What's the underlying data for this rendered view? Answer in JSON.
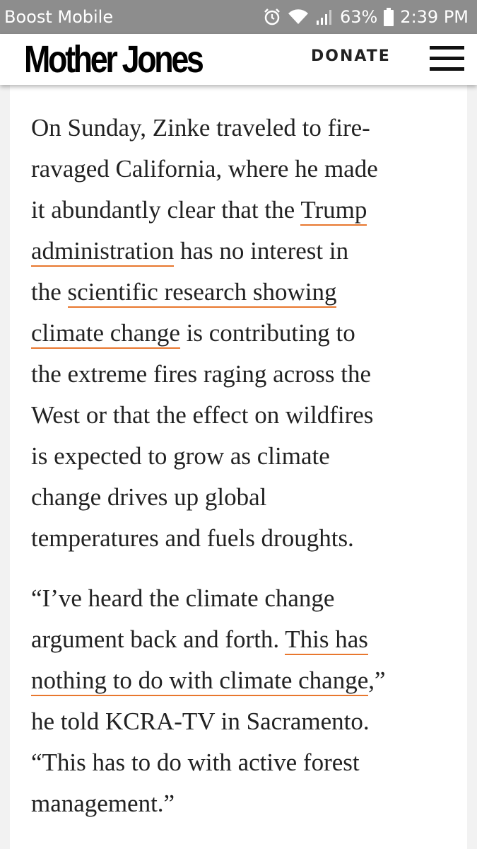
{
  "status_bar": {
    "carrier": "Boost Mobile",
    "battery": "63%",
    "time": "2:39 PM",
    "icons": [
      "alarm-icon",
      "wifi-icon",
      "signal-icon",
      "battery-icon"
    ]
  },
  "header": {
    "logo": "Mother Jones",
    "donate_label": "DONATE",
    "menu_icon": "hamburger-menu-icon"
  },
  "article": {
    "paragraph1": {
      "l1": "On Sunday, Zinke traveled to fire-",
      "l2": "ravaged California, where he made",
      "l3_pre": "it abundantly clear that the ",
      "l3_link": "Trump",
      "l4_link": "administration",
      "l4_post": " has no interest in",
      "l5_pre": "the ",
      "l5_link": "scientific research showing",
      "l6_link": "climate change",
      "l6_post": " is contributing to",
      "l7": "the extreme fires raging across the",
      "l8": "West or that the effect on wildfires",
      "l9": "is expected to grow as climate",
      "l10": "change drives up global",
      "l11": "temperatures and fuels droughts."
    },
    "paragraph2": {
      "l1": "“I’ve heard the climate change",
      "l2_pre": "argument back and forth. ",
      "l2_link": "This has",
      "l3_link": "nothing to do with climate change",
      "l3_post": ",”",
      "l4": "he told KCRA-TV in Sacramento.",
      "l5": "“This has to do with active forest",
      "l6": "management.”"
    }
  },
  "colors": {
    "status_bar_bg": "#8d8d8d",
    "link_underline": "#e8772e",
    "text": "#222222"
  }
}
